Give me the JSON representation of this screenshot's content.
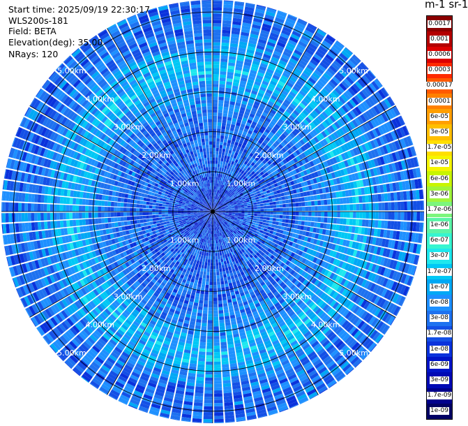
{
  "header": {
    "start_time": "Start time: 2025/09/19 22:30:17",
    "device": "WLS200s-181",
    "field": "Field: BETA",
    "elevation": "Elevation(deg): 35.00",
    "nrays": "NRays: 120"
  },
  "colorbar": {
    "title": "m-1 sr-1",
    "labels": [
      "0.0017",
      "0.001",
      "0.0006",
      "0.0003",
      "0.00017",
      "0.0001",
      "6e-05",
      "3e-05",
      "1.7e-05",
      "1e-05",
      "6e-06",
      "3e-06",
      "1.7e-06",
      "1e-06",
      "6e-07",
      "3e-07",
      "1.7e-07",
      "1e-07",
      "6e-08",
      "3e-08",
      "1.7e-08",
      "1e-08",
      "6e-09",
      "3e-09",
      "1.7e-09",
      "1e-09"
    ],
    "colors": [
      "#8b0000",
      "#b30000",
      "#dd0000",
      "#ff2a00",
      "#ff5a00",
      "#ff8000",
      "#ff9f00",
      "#ffbf00",
      "#ffdf00",
      "#f5f500",
      "#c8f500",
      "#a0f53c",
      "#7cf57c",
      "#5cf5a8",
      "#36f5d0",
      "#1ee8ee",
      "#00c8f5",
      "#00a8f5",
      "#1e90ff",
      "#1e72f0",
      "#1450e6",
      "#0a32dc",
      "#0014c8",
      "#000ab4",
      "#00008c",
      "#000064"
    ]
  },
  "chart_data": {
    "type": "heatmap",
    "projection": "polar (PPI scan)",
    "field": "BETA",
    "units": "m-1 sr-1",
    "elevation_deg": 35.0,
    "nrays": 120,
    "range_rings_km": [
      1,
      2,
      3,
      4,
      5
    ],
    "range_ring_labels": [
      "1.00km",
      "2.00km",
      "3.00km",
      "4.00km",
      "5.00km"
    ],
    "max_range_km": 5.3,
    "color_scale": "log",
    "color_range": [
      1e-09,
      0.0017
    ],
    "radial_profile": [
      {
        "range_km": 0.0,
        "beta": 1e-08
      },
      {
        "range_km": 1.0,
        "beta": 2e-08
      },
      {
        "range_km": 2.0,
        "beta": 2.5e-08
      },
      {
        "range_km": 3.0,
        "beta": 5e-08
      },
      {
        "range_km": 3.5,
        "beta": 1.2e-07
      },
      {
        "range_km": 4.0,
        "beta": 8e-08
      },
      {
        "range_km": 4.5,
        "beta": 3e-08
      },
      {
        "range_km": 5.3,
        "beta": 3e-08
      }
    ],
    "grid": true
  }
}
